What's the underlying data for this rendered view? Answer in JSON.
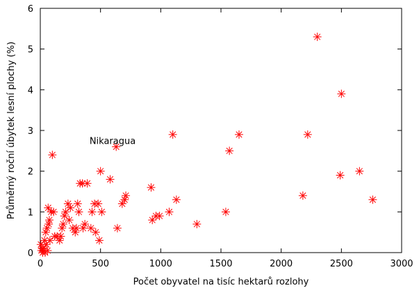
{
  "chart_data": {
    "type": "scatter",
    "title": "",
    "xlabel": "Počet obyvatel na tisíc hektarů rozlohy",
    "ylabel": "Průměrný roční úbytek lesní plochy (%)",
    "xlim": [
      0,
      3000
    ],
    "ylim": [
      0,
      6
    ],
    "xticks": [
      0,
      500,
      1000,
      1500,
      2000,
      2500,
      3000
    ],
    "yticks": [
      0,
      1,
      2,
      3,
      4,
      5,
      6
    ],
    "grid": false,
    "legend": "none",
    "marker": "asterisk",
    "marker_color": "#ff0000",
    "annotations": [
      {
        "text": "Nikaragua",
        "x": 600,
        "y": 2.75
      }
    ],
    "points": [
      [
        5,
        0.2
      ],
      [
        10,
        0.05
      ],
      [
        15,
        0.1
      ],
      [
        20,
        0.0
      ],
      [
        25,
        0.1
      ],
      [
        35,
        0.3
      ],
      [
        40,
        0.0
      ],
      [
        45,
        0.5
      ],
      [
        50,
        0.2
      ],
      [
        55,
        0.6
      ],
      [
        60,
        0.05
      ],
      [
        65,
        1.1
      ],
      [
        70,
        0.7
      ],
      [
        75,
        0.8
      ],
      [
        80,
        0.3
      ],
      [
        90,
        1.0
      ],
      [
        100,
        2.4
      ],
      [
        110,
        1.0
      ],
      [
        120,
        0.4
      ],
      [
        140,
        0.4
      ],
      [
        160,
        0.3
      ],
      [
        170,
        0.4
      ],
      [
        180,
        0.6
      ],
      [
        190,
        0.7
      ],
      [
        200,
        0.9
      ],
      [
        210,
        1.0
      ],
      [
        230,
        1.2
      ],
      [
        240,
        0.8
      ],
      [
        250,
        1.1
      ],
      [
        270,
        0.6
      ],
      [
        290,
        0.5
      ],
      [
        300,
        0.6
      ],
      [
        310,
        1.2
      ],
      [
        320,
        1.0
      ],
      [
        330,
        1.7
      ],
      [
        350,
        1.7
      ],
      [
        355,
        0.6
      ],
      [
        370,
        0.7
      ],
      [
        390,
        1.7
      ],
      [
        420,
        0.6
      ],
      [
        430,
        1.0
      ],
      [
        450,
        1.2
      ],
      [
        460,
        0.5
      ],
      [
        480,
        1.2
      ],
      [
        490,
        0.3
      ],
      [
        500,
        2.0
      ],
      [
        510,
        1.0
      ],
      [
        580,
        1.8
      ],
      [
        630,
        2.6
      ],
      [
        640,
        0.6
      ],
      [
        680,
        1.2
      ],
      [
        700,
        1.3
      ],
      [
        710,
        1.4
      ],
      [
        920,
        1.6
      ],
      [
        930,
        0.8
      ],
      [
        960,
        0.9
      ],
      [
        990,
        0.9
      ],
      [
        1070,
        1.0
      ],
      [
        1100,
        2.9
      ],
      [
        1130,
        1.3
      ],
      [
        1300,
        0.7
      ],
      [
        1540,
        1.0
      ],
      [
        1570,
        2.5
      ],
      [
        1650,
        2.9
      ],
      [
        2180,
        1.4
      ],
      [
        2220,
        2.9
      ],
      [
        2300,
        5.3
      ],
      [
        2490,
        1.9
      ],
      [
        2500,
        3.9
      ],
      [
        2650,
        2.0
      ],
      [
        2760,
        1.3
      ]
    ]
  }
}
